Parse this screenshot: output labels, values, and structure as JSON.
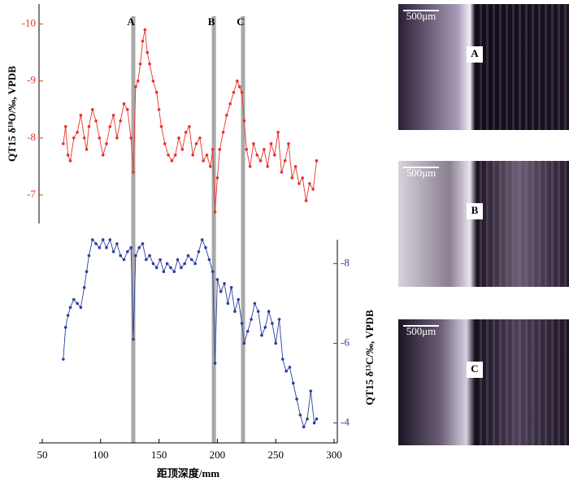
{
  "chart_data": {
    "type": "line",
    "xlabel": "距顶深度/mm",
    "ylabel": "QT15 δ¹⁸O/‰, VPDB",
    "y2label": "QT15 δ¹³C/‰, VPDB",
    "xlim": [
      50,
      300
    ],
    "xticks": [
      50,
      100,
      150,
      200,
      250,
      300
    ],
    "ylim": [
      -6.5,
      -10.35
    ],
    "yticks": [
      -10,
      -9,
      -8,
      -7
    ],
    "y2lim": [
      -3.5,
      -8.6
    ],
    "y2ticks": [
      -8,
      -6,
      -4
    ],
    "annotations": [
      {
        "label": "A",
        "x": 128
      },
      {
        "label": "B",
        "x": 197
      },
      {
        "label": "C",
        "x": 222
      }
    ],
    "series": [
      {
        "color": "#e8322a",
        "x": [
          68,
          70,
          72,
          74,
          77,
          80,
          83,
          86,
          88,
          90,
          93,
          96,
          99,
          102,
          105,
          108,
          111,
          114,
          117,
          120,
          123,
          126,
          128,
          130,
          132,
          134,
          136,
          138,
          140,
          142,
          145,
          148,
          150,
          152,
          155,
          158,
          161,
          164,
          167,
          170,
          173,
          176,
          179,
          182,
          185,
          188,
          191,
          194,
          196,
          198,
          200,
          202,
          205,
          208,
          211,
          214,
          217,
          219,
          221,
          223,
          225,
          228,
          231,
          234,
          237,
          240,
          243,
          246,
          249,
          252,
          255,
          258,
          261,
          264,
          267,
          270,
          273,
          276,
          279,
          282,
          285
        ],
        "values": [
          -7.9,
          -8.2,
          -7.7,
          -7.6,
          -8.0,
          -8.1,
          -8.4,
          -8.0,
          -7.8,
          -8.2,
          -8.5,
          -8.3,
          -8.0,
          -7.7,
          -7.9,
          -8.2,
          -8.4,
          -8.0,
          -8.3,
          -8.6,
          -8.5,
          -8.0,
          -7.4,
          -8.9,
          -9.0,
          -9.3,
          -9.7,
          -9.9,
          -9.5,
          -9.3,
          -9.0,
          -8.8,
          -8.5,
          -8.2,
          -7.9,
          -7.7,
          -7.6,
          -7.7,
          -8.0,
          -7.8,
          -8.1,
          -8.2,
          -7.7,
          -7.9,
          -8.0,
          -7.6,
          -7.7,
          -7.5,
          -7.8,
          -6.7,
          -7.3,
          -7.8,
          -8.1,
          -8.4,
          -8.6,
          -8.8,
          -9.0,
          -8.9,
          -8.8,
          -8.3,
          -7.8,
          -7.5,
          -7.9,
          -7.7,
          -7.6,
          -7.8,
          -7.5,
          -7.9,
          -7.7,
          -8.1,
          -7.4,
          -7.6,
          -7.9,
          -7.3,
          -7.5,
          -7.2,
          -7.3,
          -6.9,
          -7.2,
          -7.1,
          -7.6
        ]
      },
      {
        "color": "#2b3f9e",
        "axis": "y2",
        "x": [
          68,
          70,
          72,
          74,
          77,
          80,
          83,
          86,
          88,
          90,
          93,
          96,
          99,
          102,
          105,
          108,
          111,
          114,
          117,
          120,
          123,
          126,
          128,
          130,
          133,
          136,
          139,
          142,
          145,
          148,
          151,
          154,
          157,
          160,
          163,
          166,
          169,
          172,
          175,
          178,
          181,
          184,
          187,
          190,
          193,
          196,
          198,
          200,
          203,
          206,
          209,
          212,
          215,
          218,
          221,
          223,
          226,
          229,
          232,
          235,
          238,
          241,
          244,
          247,
          250,
          253,
          256,
          259,
          262,
          265,
          268,
          271,
          274,
          277,
          280,
          283,
          285
        ],
        "values": [
          -5.6,
          -6.4,
          -6.7,
          -6.9,
          -7.1,
          -7.0,
          -6.9,
          -7.4,
          -7.8,
          -8.2,
          -8.6,
          -8.5,
          -8.4,
          -8.6,
          -8.4,
          -8.6,
          -8.3,
          -8.5,
          -8.2,
          -8.1,
          -8.3,
          -8.4,
          -6.1,
          -8.2,
          -8.4,
          -8.5,
          -8.1,
          -8.2,
          -8.0,
          -7.9,
          -8.1,
          -7.8,
          -8.0,
          -7.9,
          -7.8,
          -8.1,
          -7.9,
          -8.0,
          -8.2,
          -8.1,
          -8.0,
          -8.3,
          -8.6,
          -8.4,
          -8.1,
          -7.8,
          -5.5,
          -7.6,
          -7.3,
          -7.5,
          -7.0,
          -7.4,
          -6.8,
          -7.1,
          -6.5,
          -6.0,
          -6.3,
          -6.6,
          -7.0,
          -6.8,
          -6.2,
          -6.4,
          -6.8,
          -6.5,
          -6.0,
          -6.6,
          -5.6,
          -5.3,
          -5.4,
          -5.0,
          -4.6,
          -4.2,
          -3.9,
          -4.1,
          -4.8,
          -4.0,
          -4.1
        ]
      }
    ]
  },
  "panels": [
    {
      "scale": "500μm",
      "label": "A"
    },
    {
      "scale": "500μm",
      "label": "B"
    },
    {
      "scale": "500μm",
      "label": "C"
    }
  ]
}
